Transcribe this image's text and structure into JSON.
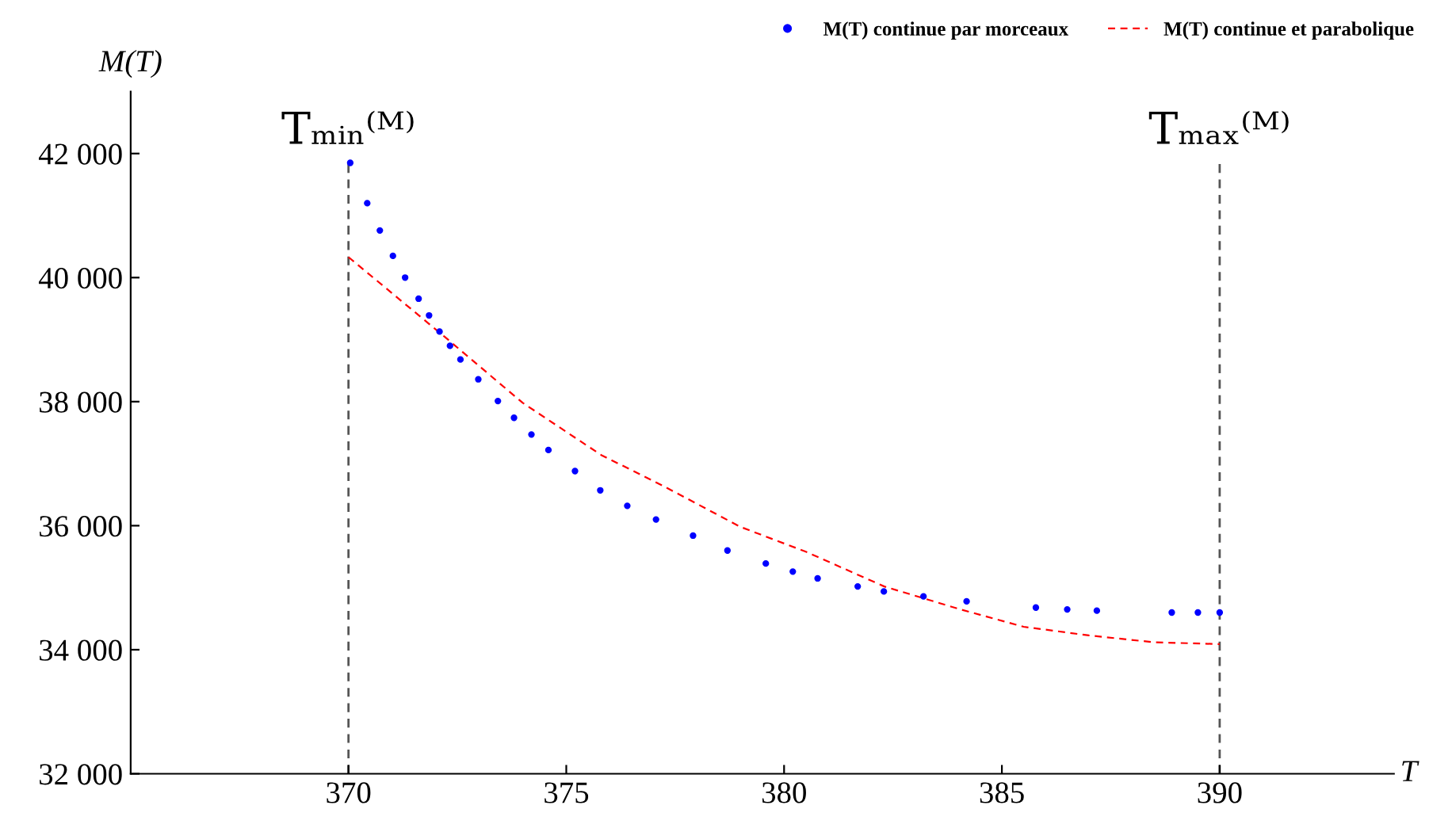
{
  "chart_data": {
    "type": "line",
    "xlabel": "T",
    "ylabel": "M(T)",
    "xlim": [
      365,
      394
    ],
    "ylim": [
      32000,
      43000
    ],
    "xticks": [
      370,
      375,
      380,
      385,
      390
    ],
    "yticks": [
      {
        "value": 32000,
        "label": "32 000"
      },
      {
        "value": 34000,
        "label": "34 000"
      },
      {
        "value": 36000,
        "label": "36 000"
      },
      {
        "value": 38000,
        "label": "38 000"
      },
      {
        "value": 40000,
        "label": "40 000"
      },
      {
        "value": 42000,
        "label": "42 000"
      }
    ],
    "grid": false,
    "legend": "top right",
    "series": [
      {
        "name": "M(T) continue par morceaux",
        "type": "scatter",
        "marker": "circle",
        "color": "#0000ff",
        "x": [
          370.04,
          370.43,
          370.72,
          371.02,
          371.3,
          371.61,
          371.85,
          372.09,
          372.33,
          372.57,
          372.98,
          373.2,
          373.43,
          373.8,
          374.2,
          374.59,
          375.2,
          375.78,
          376.4,
          377.06,
          377.5,
          377.91,
          378.7,
          379.58,
          380.2,
          380.77,
          381.69,
          382.0,
          382.29,
          383.2,
          384.19,
          384.9,
          385.78,
          386.5,
          387.18,
          388.0,
          388.9,
          389.5,
          390.0
        ],
        "values": [
          41850,
          41200,
          40760,
          40350,
          40000,
          39660,
          39390,
          39130,
          38900,
          38680,
          38360,
          null,
          38010,
          37740,
          37470,
          37220,
          36880,
          36570,
          36320,
          36100,
          null,
          35840,
          35600,
          35390,
          35260,
          35150,
          35020,
          null,
          34940,
          34860,
          34780,
          null,
          34680,
          34650,
          34630,
          null,
          34600,
          34600,
          34600
        ]
      },
      {
        "name": "M(T) continue et parabolique",
        "line_style": "dashed",
        "color": "#ff0000",
        "x": [
          370,
          372.2,
          374,
          375.8,
          377.2,
          379,
          380.5,
          382.3,
          384,
          385.5,
          387,
          388.5,
          390
        ],
        "values": [
          40330,
          39050,
          37980,
          37140,
          36650,
          35980,
          35580,
          35020,
          34660,
          34370,
          34230,
          34120,
          34090
        ]
      }
    ],
    "ref_lines": [
      {
        "axis": "x",
        "value": 370,
        "label": "Tₘᵢₙ⁽ᴹ⁾",
        "color": "#555555",
        "line_style": "dashed"
      },
      {
        "axis": "x",
        "value": 390,
        "label": "Tₘₐₓ⁽ᴹ⁾",
        "color": "#555555",
        "line_style": "dashed"
      }
    ]
  }
}
